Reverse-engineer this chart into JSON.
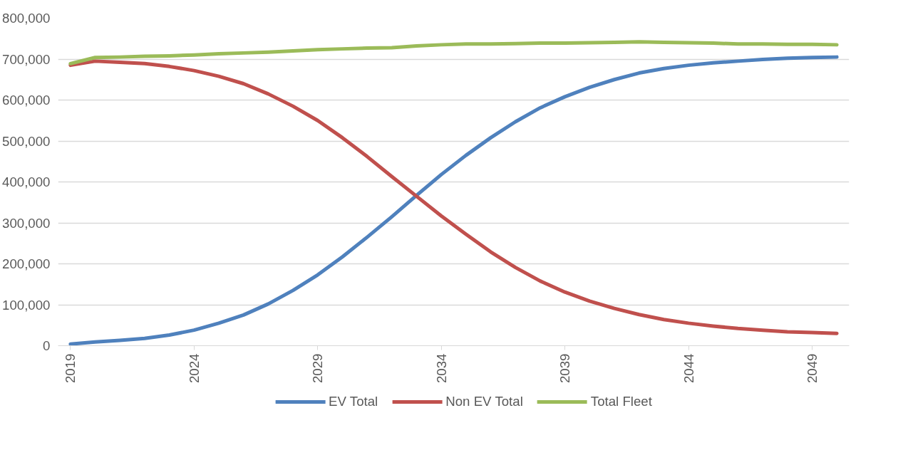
{
  "chart_data": {
    "type": "line",
    "x": [
      2019,
      2020,
      2021,
      2022,
      2023,
      2024,
      2025,
      2026,
      2027,
      2028,
      2029,
      2030,
      2031,
      2032,
      2033,
      2034,
      2035,
      2036,
      2037,
      2038,
      2039,
      2040,
      2041,
      2042,
      2043,
      2044,
      2045,
      2046,
      2047,
      2048,
      2049,
      2050
    ],
    "series": [
      {
        "name": "EV Total",
        "color": "#4f81bd",
        "values": [
          4000,
          9000,
          13000,
          18000,
          26000,
          38000,
          55000,
          75000,
          102000,
          135000,
          173000,
          217000,
          265000,
          315000,
          367000,
          418000,
          465000,
          508000,
          547000,
          581000,
          608000,
          631000,
          650000,
          666000,
          677000,
          685000,
          691000,
          695000,
          699000,
          702000,
          704000,
          705000
        ]
      },
      {
        "name": "Non EV Total",
        "color": "#c0504d",
        "values": [
          685000,
          695000,
          692000,
          689000,
          682000,
          672000,
          658000,
          640000,
          615000,
          585000,
          550000,
          508000,
          462000,
          413000,
          365000,
          317000,
          272000,
          229000,
          191000,
          158000,
          131000,
          109000,
          91000,
          76000,
          64000,
          55000,
          48000,
          42000,
          38000,
          34000,
          32000,
          30000
        ]
      },
      {
        "name": "Total Fleet",
        "color": "#9bbb59",
        "values": [
          689000,
          704000,
          705000,
          707000,
          708000,
          710000,
          713000,
          715000,
          717000,
          720000,
          723000,
          725000,
          727000,
          728000,
          732000,
          735000,
          737000,
          737000,
          738000,
          739000,
          739000,
          740000,
          741000,
          742000,
          741000,
          740000,
          739000,
          737000,
          737000,
          736000,
          736000,
          735000
        ]
      }
    ],
    "xlim": [
      2018.5,
      2050.5
    ],
    "xticks": [
      2019,
      2024,
      2029,
      2034,
      2039,
      2044,
      2049
    ],
    "ylim": [
      0,
      800000
    ],
    "yticks": [
      {
        "value": 0,
        "label": "0"
      },
      {
        "value": 100000,
        "label": "100,000"
      },
      {
        "value": 200000,
        "label": "200,000"
      },
      {
        "value": 300000,
        "label": "300,000"
      },
      {
        "value": 400000,
        "label": "400,000"
      },
      {
        "value": 500000,
        "label": "500,000"
      },
      {
        "value": 600000,
        "label": "600,000"
      },
      {
        "value": 700000,
        "label": "700,000"
      },
      {
        "value": 800000,
        "label": "800,000"
      }
    ],
    "grid": "y",
    "legend": "bottom",
    "marker": "none",
    "line_style": "solid"
  }
}
